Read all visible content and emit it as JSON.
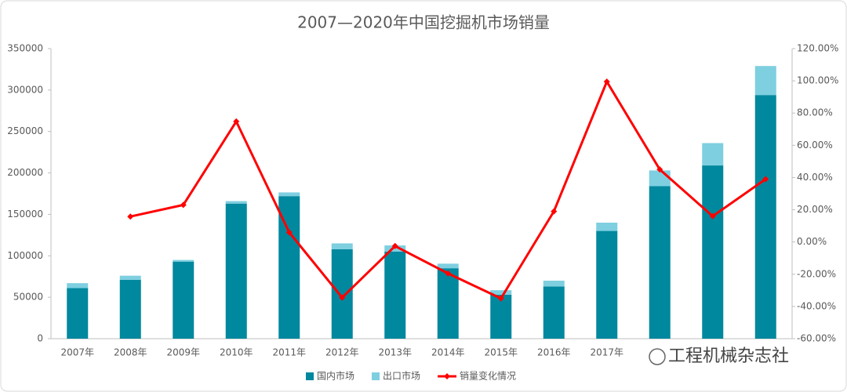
{
  "chart_data": {
    "type": "bar",
    "stacked": true,
    "title": "2007—2020年中国挖掘机市场销量",
    "categories": [
      "2007年",
      "2008年",
      "2009年",
      "2010年",
      "2011年",
      "2012年",
      "2013年",
      "2014年",
      "2015年",
      "2016年",
      "2017年",
      null,
      null,
      null
    ],
    "series": [
      {
        "name": "国内市场",
        "type": "bar",
        "color": "#00889e",
        "values": [
          61000,
          71000,
          93000,
          163000,
          172000,
          108000,
          105000,
          85000,
          53000,
          63000,
          130000,
          184000,
          209000,
          294000
        ]
      },
      {
        "name": "出口市场",
        "type": "bar",
        "color": "#7ecfe0",
        "values": [
          6000,
          5000,
          2000,
          3000,
          4500,
          7000,
          7500,
          5500,
          5500,
          7000,
          10000,
          19000,
          27000,
          35000
        ]
      },
      {
        "name": "销量变化情况",
        "type": "line",
        "axis": "y2",
        "color": "#ff0000",
        "values": [
          null,
          15.8,
          23,
          74.8,
          6,
          -34.5,
          -2.5,
          -19.5,
          -35,
          19,
          99.5,
          45,
          16,
          39
        ]
      }
    ],
    "ylim": [
      0,
      350000
    ],
    "yticks": [
      0,
      50000,
      100000,
      150000,
      200000,
      250000,
      300000,
      350000
    ],
    "y2lim": [
      -60,
      120
    ],
    "y2ticks": [
      {
        "value": -60,
        "label": "-60.00%"
      },
      {
        "value": -40,
        "label": "-40.00%"
      },
      {
        "value": -20,
        "label": "-20.00%"
      },
      {
        "value": 0,
        "label": "0.00%"
      },
      {
        "value": 20,
        "label": "20.00%"
      },
      {
        "value": 40,
        "label": "40.00%"
      },
      {
        "value": 60,
        "label": "60.00%"
      },
      {
        "value": 80,
        "label": "80.00%"
      },
      {
        "value": 100,
        "label": "100.00%"
      },
      {
        "value": 120,
        "label": "120.00%"
      }
    ],
    "grid": false,
    "legend": "bottom",
    "annotation": "工程机械杂志社"
  }
}
